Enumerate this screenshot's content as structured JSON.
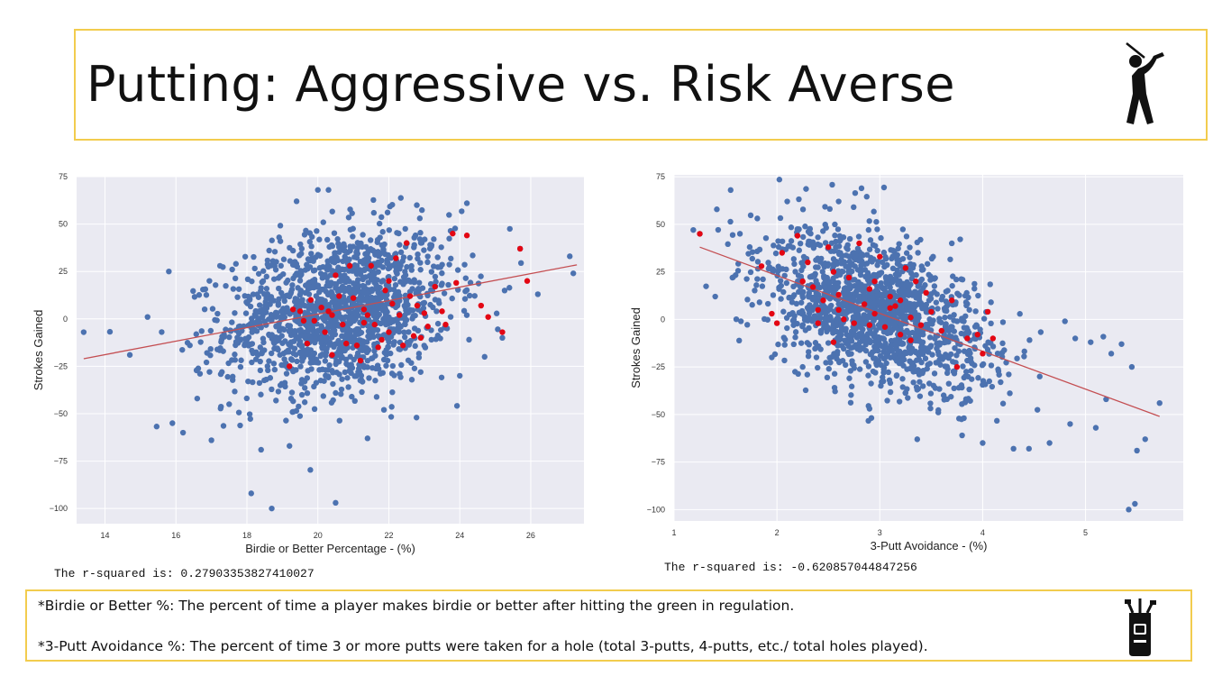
{
  "header": {
    "title": "Putting: Aggressive vs. Risk Averse",
    "icon": "golfer-icon"
  },
  "footer": {
    "note1": "*Birdie or Better %: The percent of time a player makes birdie or better after hitting the green in regulation.",
    "note2": "*3-Putt Avoidance %: The percent of time 3 or more putts were taken for a hole (total 3-putts, 4-putts, etc./ total holes played).",
    "icon": "golf-bag-icon"
  },
  "colors": {
    "background": "#eaeaf2",
    "grid": "#ffffff",
    "points": "#4c72b0",
    "highlight": "#e30613",
    "trend": "#c44e52",
    "border": "#f2cc4e"
  },
  "chart_data": [
    {
      "type": "scatter",
      "title": "",
      "xlabel": "Birdie or Better Percentage - (%)",
      "ylabel": "Strokes Gained",
      "xlim": [
        13.2,
        27.5
      ],
      "ylim": [
        -108,
        75
      ],
      "xticks": [
        14,
        16,
        18,
        20,
        22,
        24,
        26
      ],
      "yticks": [
        75,
        50,
        25,
        0,
        -25,
        -50,
        -75,
        -100
      ],
      "trend_line": [
        [
          13.4,
          -21
        ],
        [
          27.3,
          28.5
        ]
      ],
      "cloud_center": [
        20.6,
        4
      ],
      "cloud_spread": [
        1.6,
        21
      ],
      "cloud_count": 1500,
      "r_squared_text": "The r-squared is: 0.27903353827410027",
      "outliers": [
        [
          13.4,
          -7
        ],
        [
          15.2,
          1
        ],
        [
          15.8,
          25
        ],
        [
          15.9,
          -55
        ],
        [
          17,
          -64
        ],
        [
          18.7,
          -100
        ],
        [
          20.5,
          -97
        ],
        [
          21.4,
          -63
        ],
        [
          18.4,
          -69
        ],
        [
          19.2,
          -67
        ],
        [
          20,
          68
        ],
        [
          20.3,
          68
        ],
        [
          19.4,
          62
        ],
        [
          24.2,
          61
        ],
        [
          25.7,
          37
        ],
        [
          27.1,
          33
        ],
        [
          27.2,
          24
        ],
        [
          26.2,
          13
        ],
        [
          25.2,
          -10
        ],
        [
          24,
          -30
        ],
        [
          24.7,
          -20
        ],
        [
          14.7,
          -19
        ],
        [
          16.6,
          -42
        ],
        [
          17.5,
          -45
        ],
        [
          16.2,
          -60
        ]
      ],
      "highlight_points": [
        [
          19.2,
          -25
        ],
        [
          19.3,
          5
        ],
        [
          19.5,
          4
        ],
        [
          19.6,
          -1
        ],
        [
          19.8,
          10
        ],
        [
          19.9,
          -1
        ],
        [
          20.1,
          6
        ],
        [
          20.2,
          -7
        ],
        [
          20.3,
          4
        ],
        [
          20.4,
          2
        ],
        [
          20.5,
          23
        ],
        [
          20.6,
          12
        ],
        [
          20.7,
          -3
        ],
        [
          20.8,
          -13
        ],
        [
          20.9,
          28
        ],
        [
          21.0,
          11
        ],
        [
          21.1,
          -14
        ],
        [
          21.2,
          -22
        ],
        [
          21.3,
          5
        ],
        [
          21.4,
          2
        ],
        [
          21.5,
          28
        ],
        [
          21.6,
          -3
        ],
        [
          21.7,
          -15
        ],
        [
          21.8,
          -11
        ],
        [
          21.9,
          15
        ],
        [
          22.0,
          -7
        ],
        [
          22.1,
          8
        ],
        [
          22.2,
          32
        ],
        [
          22.3,
          2
        ],
        [
          22.4,
          -14
        ],
        [
          22.5,
          40
        ],
        [
          22.6,
          12
        ],
        [
          22.7,
          -9
        ],
        [
          22.8,
          7
        ],
        [
          22.9,
          -10
        ],
        [
          23.0,
          3
        ],
        [
          23.1,
          -4
        ],
        [
          23.3,
          17
        ],
        [
          23.5,
          4
        ],
        [
          23.6,
          -3
        ],
        [
          23.8,
          45
        ],
        [
          23.9,
          19
        ],
        [
          24.2,
          44
        ],
        [
          24.6,
          7
        ],
        [
          24.8,
          1
        ],
        [
          25.2,
          -7
        ],
        [
          25.7,
          37
        ],
        [
          25.9,
          20
        ],
        [
          19.7,
          -13
        ],
        [
          20.4,
          -19
        ],
        [
          21.3,
          -2
        ],
        [
          22.0,
          20
        ]
      ]
    },
    {
      "type": "scatter",
      "title": "",
      "xlabel": "3-Putt Avoidance - (%)",
      "ylabel": "Strokes Gained",
      "xlim": [
        1.0,
        5.95
      ],
      "ylim": [
        -106,
        76
      ],
      "xticks": [
        1,
        2,
        3,
        4,
        5
      ],
      "yticks": [
        75,
        50,
        25,
        0,
        -25,
        -50,
        -75,
        -100
      ],
      "trend_line": [
        [
          1.25,
          38
        ],
        [
          5.72,
          -51
        ]
      ],
      "cloud_center": [
        2.95,
        4
      ],
      "cloud_spread": [
        0.55,
        19
      ],
      "cloud_count": 1500,
      "r_squared_text": "The r-squared is: -0.620857044847256",
      "outliers": [
        [
          1.25,
          45
        ],
        [
          1.4,
          12
        ],
        [
          1.55,
          68
        ],
        [
          2.1,
          62
        ],
        [
          2.6,
          62
        ],
        [
          3.7,
          40
        ],
        [
          5.42,
          -100
        ],
        [
          5.48,
          -97
        ],
        [
          5.5,
          -69
        ],
        [
          5.58,
          -63
        ],
        [
          5.72,
          -44
        ],
        [
          5.35,
          -13
        ],
        [
          4.85,
          -55
        ],
        [
          4.65,
          -65
        ],
        [
          4.45,
          -68
        ],
        [
          4.3,
          -68
        ],
        [
          4.0,
          -65
        ],
        [
          5.1,
          -57
        ],
        [
          5.2,
          -42
        ],
        [
          4.9,
          -10
        ],
        [
          5.05,
          -12
        ],
        [
          3.8,
          -61
        ],
        [
          4.8,
          -1
        ],
        [
          5.45,
          -25
        ],
        [
          5.25,
          -18
        ],
        [
          2.9,
          -47
        ],
        [
          2.25,
          -25
        ],
        [
          1.95,
          -20
        ],
        [
          1.65,
          -1
        ],
        [
          1.8,
          18
        ]
      ],
      "highlight_points": [
        [
          1.25,
          45
        ],
        [
          1.85,
          28
        ],
        [
          1.95,
          3
        ],
        [
          2.0,
          -2
        ],
        [
          2.05,
          35
        ],
        [
          2.2,
          44
        ],
        [
          2.25,
          20
        ],
        [
          2.3,
          30
        ],
        [
          2.35,
          17
        ],
        [
          2.4,
          5
        ],
        [
          2.45,
          10
        ],
        [
          2.5,
          38
        ],
        [
          2.55,
          25
        ],
        [
          2.6,
          13
        ],
        [
          2.65,
          0
        ],
        [
          2.7,
          22
        ],
        [
          2.75,
          -2
        ],
        [
          2.8,
          40
        ],
        [
          2.85,
          8
        ],
        [
          2.9,
          16
        ],
        [
          2.95,
          3
        ],
        [
          3.0,
          33
        ],
        [
          3.05,
          -4
        ],
        [
          3.1,
          12
        ],
        [
          3.15,
          7
        ],
        [
          3.2,
          -8
        ],
        [
          3.25,
          27
        ],
        [
          3.3,
          1
        ],
        [
          3.35,
          20
        ],
        [
          3.4,
          -3
        ],
        [
          3.45,
          14
        ],
        [
          3.5,
          4
        ],
        [
          3.6,
          -6
        ],
        [
          3.7,
          10
        ],
        [
          3.75,
          -25
        ],
        [
          3.85,
          -10
        ],
        [
          3.95,
          -8
        ],
        [
          4.0,
          -18
        ],
        [
          4.05,
          4
        ],
        [
          4.1,
          -10
        ],
        [
          2.4,
          -2
        ],
        [
          2.6,
          5
        ],
        [
          2.9,
          -3
        ],
        [
          3.1,
          6
        ],
        [
          3.2,
          10
        ],
        [
          2.55,
          -12
        ],
        [
          2.95,
          20
        ],
        [
          3.3,
          -11
        ]
      ]
    }
  ]
}
